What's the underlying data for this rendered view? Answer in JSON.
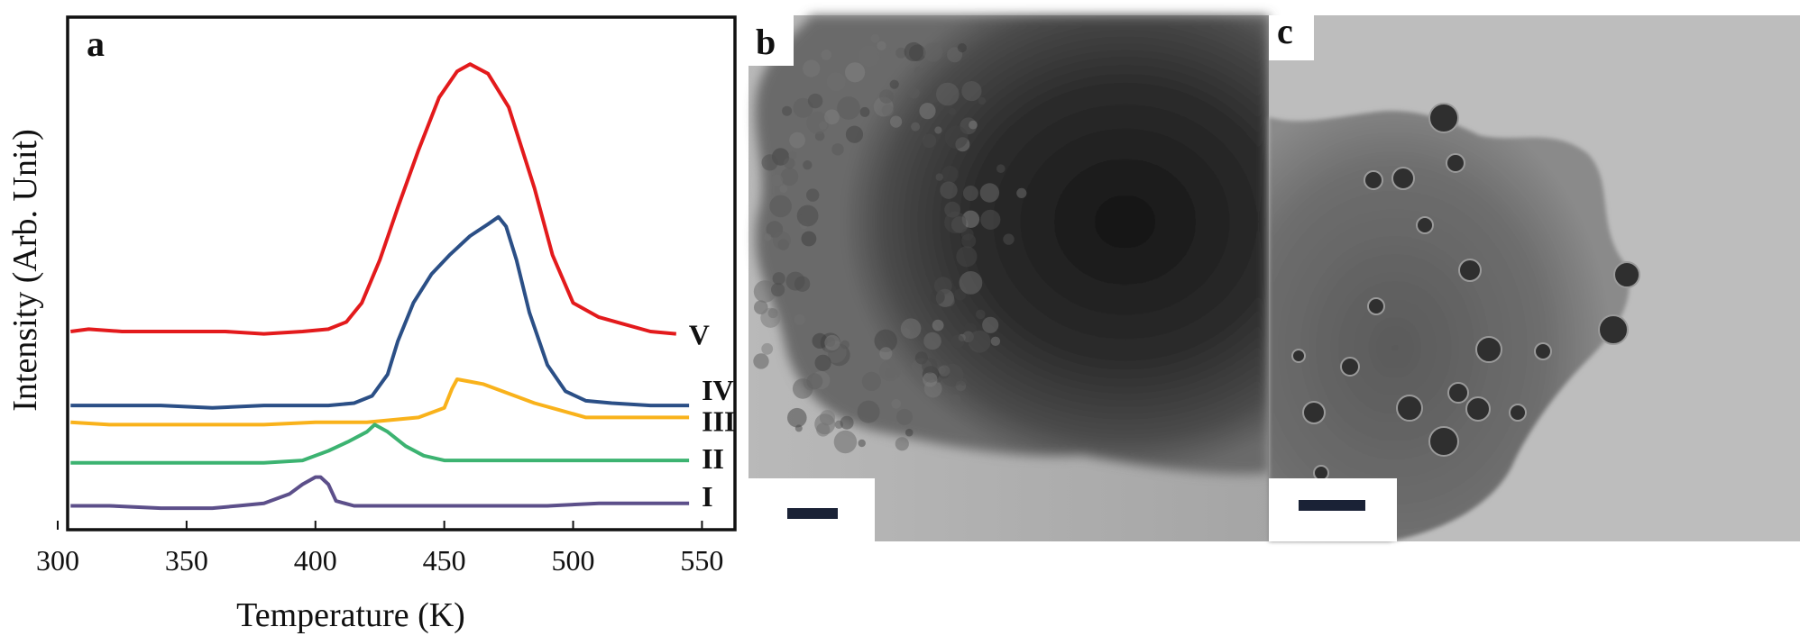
{
  "figure": {
    "panels": [
      {
        "letter": "a"
      },
      {
        "letter": "b"
      },
      {
        "letter": "c"
      }
    ]
  },
  "chart_data": {
    "type": "line",
    "title": "",
    "xlabel": "Temperature (K)",
    "ylabel": "Intensity (Arb. Unit)",
    "xlim": [
      300,
      560
    ],
    "xticks": [
      300,
      350,
      400,
      450,
      500,
      550
    ],
    "ylim": [
      0,
      100
    ],
    "grid": false,
    "series": [
      {
        "name": "V",
        "color": "#e31a1c",
        "x": [
          305,
          312,
          325,
          345,
          365,
          380,
          395,
          405,
          412,
          418,
          425,
          432,
          440,
          448,
          455,
          460,
          467,
          475,
          485,
          492,
          500,
          510,
          520,
          530,
          540
        ],
        "y": [
          40,
          40.5,
          40,
          40,
          40,
          39.5,
          40,
          40.5,
          42,
          46,
          55,
          66,
          78,
          89,
          94.5,
          96,
          94,
          87,
          70,
          56,
          46,
          43,
          41.5,
          40,
          39.5
        ]
      },
      {
        "name": "IV",
        "color": "#2b4f86",
        "x": [
          305,
          320,
          340,
          360,
          380,
          395,
          405,
          415,
          422,
          428,
          432,
          438,
          445,
          452,
          460,
          467,
          471,
          474,
          478,
          483,
          490,
          497,
          505,
          515,
          530,
          545
        ],
        "y": [
          24.5,
          24.5,
          24.5,
          24,
          24.5,
          24.5,
          24.5,
          25,
          26.5,
          31,
          38,
          46,
          52,
          56,
          60,
          62.5,
          64,
          62,
          55,
          44,
          33,
          27.5,
          25.5,
          25,
          24.5,
          24.5
        ]
      },
      {
        "name": "III",
        "color": "#f9b21b",
        "x": [
          305,
          320,
          340,
          360,
          380,
          400,
          420,
          440,
          450,
          453,
          455,
          460,
          465,
          475,
          485,
          495,
          505,
          520,
          545
        ],
        "y": [
          21,
          20.5,
          20.5,
          20.5,
          20.5,
          21,
          21,
          22,
          24,
          28,
          30,
          29.5,
          29,
          27,
          25,
          23.5,
          22,
          22,
          22
        ]
      },
      {
        "name": "II",
        "color": "#3cb371",
        "x": [
          305,
          320,
          340,
          360,
          380,
          395,
          405,
          413,
          420,
          423,
          428,
          435,
          442,
          450,
          470,
          500,
          545
        ],
        "y": [
          12.5,
          12.5,
          12.5,
          12.5,
          12.5,
          13,
          15,
          17,
          19,
          20.5,
          19,
          16,
          14,
          13,
          13,
          13,
          13
        ]
      },
      {
        "name": "I",
        "color": "#5c4f8a",
        "x": [
          305,
          320,
          340,
          360,
          370,
          380,
          390,
          395,
          400,
          402,
          405,
          408,
          415,
          440,
          470,
          490,
          510,
          545
        ],
        "y": [
          3.5,
          3.5,
          3,
          3,
          3.5,
          4,
          6,
          8,
          9.5,
          9.5,
          8,
          4.5,
          3.5,
          3.5,
          3.5,
          3.5,
          4,
          4
        ]
      }
    ]
  }
}
